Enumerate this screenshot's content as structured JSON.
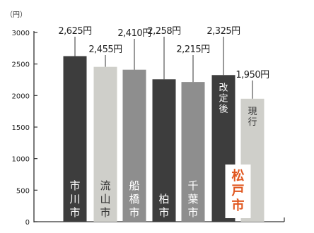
{
  "chart_data": {
    "type": "bar",
    "unit_label": "（円）",
    "categories": [
      "市川市",
      "流山市",
      "船橋市",
      "柏市",
      "千葉市",
      "松戸市 改定後",
      "松戸市 現行"
    ],
    "values": [
      2625,
      2455,
      2410,
      2258,
      2215,
      2325,
      1950
    ],
    "value_labels": [
      "2,625円",
      "2,455円",
      "2,410円",
      "2,258円",
      "2,215円",
      "2,325円",
      "1,950円"
    ],
    "bar_labels": [
      [
        "市",
        "川",
        "市"
      ],
      [
        "流",
        "山",
        "市"
      ],
      [
        "船",
        "橋",
        "市"
      ],
      [
        "柏",
        "市"
      ],
      [
        "千",
        "葉",
        "市"
      ],
      [
        "改",
        "定",
        "後"
      ],
      [
        "現",
        "行"
      ]
    ],
    "group_label": [
      "松",
      "戸",
      "市"
    ],
    "yticks": [
      "3000",
      "2500",
      "2000",
      "1500",
      "1000",
      "500",
      "0"
    ],
    "ylim": [
      0,
      3000
    ],
    "xlabel": "",
    "ylabel": "",
    "grid": false,
    "colors": {
      "bar_dark": "#3d3d3d",
      "bar_light": "#cfcfca",
      "bar_mid": "#8e8e8e",
      "group_label": "#e0561e",
      "axis": "#333333"
    },
    "bar_color_keys": [
      "bar_dark",
      "bar_light",
      "bar_mid",
      "bar_dark",
      "bar_mid",
      "bar_dark",
      "bar_light"
    ]
  }
}
